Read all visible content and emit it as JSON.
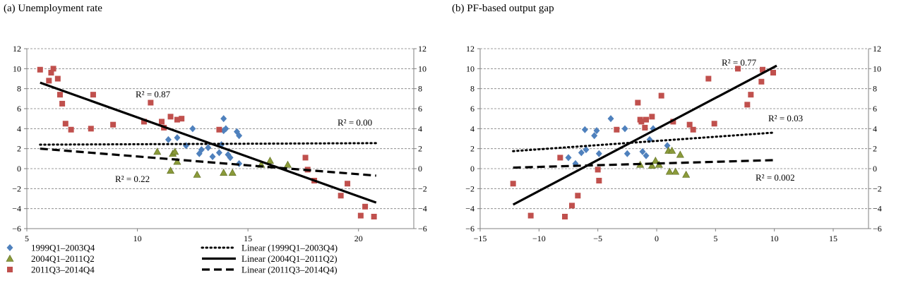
{
  "colors": {
    "series_1999": "#4f81bd",
    "series_2004": "#8a9a3a",
    "series_2011": "#c0504d",
    "grid": "#7f7f7f",
    "line": "#000000"
  },
  "legend": {
    "items": [
      {
        "label": "1999Q1–2003Q4",
        "marker": "diamond",
        "color": "#4f81bd"
      },
      {
        "label": "2004Q1–2011Q2",
        "marker": "triangle",
        "color": "#8a9a3a"
      },
      {
        "label": "2011Q3–2014Q4",
        "marker": "square",
        "color": "#c0504d"
      },
      {
        "label": "Linear (1999Q1–2003Q4)",
        "style": "dotted"
      },
      {
        "label": "Linear (2004Q1–2011Q2)",
        "style": "solid"
      },
      {
        "label": "Linear (2011Q3–2014Q4)",
        "style": "dashed"
      }
    ]
  },
  "chart_data": [
    {
      "type": "scatter",
      "title": "(a) Unemployment rate",
      "xlim": [
        5,
        22.5
      ],
      "ylim": [
        -6,
        12
      ],
      "xticks": [
        5,
        10,
        15,
        20
      ],
      "yticks": [
        -6,
        -4,
        -2,
        0,
        2,
        4,
        6,
        8,
        10,
        12
      ],
      "grid": "horizontal dashed",
      "series": [
        {
          "name": "1999Q1–2003Q4",
          "marker": "diamond",
          "points": [
            [
              11.4,
              2.9
            ],
            [
              11.8,
              3.1
            ],
            [
              12.2,
              2.3
            ],
            [
              12.5,
              4.0
            ],
            [
              12.8,
              1.5
            ],
            [
              12.9,
              1.9
            ],
            [
              13.2,
              2.1
            ],
            [
              13.4,
              1.2
            ],
            [
              13.7,
              1.6
            ],
            [
              13.8,
              2.4
            ],
            [
              13.9,
              5.0
            ],
            [
              13.9,
              3.8
            ],
            [
              14.0,
              4.0
            ],
            [
              14.1,
              1.4
            ],
            [
              14.2,
              1.1
            ],
            [
              14.5,
              3.7
            ],
            [
              14.6,
              3.3
            ],
            [
              14.6,
              0.5
            ]
          ]
        },
        {
          "name": "2004Q1–2011Q2",
          "marker": "triangle",
          "points": [
            [
              10.9,
              1.7
            ],
            [
              11.5,
              -0.2
            ],
            [
              11.6,
              1.5
            ],
            [
              11.7,
              1.7
            ],
            [
              11.8,
              0.7
            ],
            [
              12.7,
              -0.6
            ],
            [
              13.9,
              -0.4
            ],
            [
              14.3,
              -0.4
            ],
            [
              15.6,
              0.4
            ],
            [
              16.0,
              0.8
            ],
            [
              16.8,
              0.4
            ]
          ]
        },
        {
          "name": "2011Q3–2014Q4",
          "marker": "square",
          "points": [
            [
              5.6,
              9.9
            ],
            [
              6.0,
              8.8
            ],
            [
              6.1,
              9.6
            ],
            [
              6.2,
              10.0
            ],
            [
              6.4,
              9.0
            ],
            [
              6.5,
              7.4
            ],
            [
              6.6,
              6.5
            ],
            [
              6.75,
              4.5
            ],
            [
              7.0,
              3.9
            ],
            [
              7.9,
              4.0
            ],
            [
              8.0,
              7.4
            ],
            [
              8.9,
              4.4
            ],
            [
              10.3,
              4.7
            ],
            [
              10.6,
              6.6
            ],
            [
              11.1,
              4.7
            ],
            [
              11.2,
              4.1
            ],
            [
              11.5,
              5.2
            ],
            [
              11.8,
              4.9
            ],
            [
              12.0,
              5.0
            ],
            [
              13.7,
              3.9
            ],
            [
              17.6,
              1.1
            ],
            [
              17.7,
              -0.1
            ],
            [
              18.0,
              -1.2
            ],
            [
              19.2,
              -2.7
            ],
            [
              19.5,
              -1.5
            ],
            [
              20.1,
              -4.7
            ],
            [
              20.3,
              -3.8
            ],
            [
              20.7,
              -4.8
            ]
          ]
        }
      ],
      "trendlines": [
        {
          "name": "Linear (1999Q1–2003Q4)",
          "style": "dotted",
          "from": [
            5.6,
            2.4
          ],
          "to": [
            20.8,
            2.55
          ],
          "r2": "R² = 0.00"
        },
        {
          "name": "Linear (2004Q1–2011Q2)",
          "style": "solid",
          "from": [
            5.6,
            8.6
          ],
          "to": [
            20.8,
            -3.4
          ],
          "r2": "R² = 0.87"
        },
        {
          "name": "Linear (2011Q3–2014Q4)",
          "style": "dashed",
          "from": [
            5.6,
            2.0
          ],
          "to": [
            20.8,
            -0.7
          ],
          "r2": "R² = 0.22"
        }
      ]
    },
    {
      "type": "scatter",
      "title": "(b) PF-based output gap",
      "xlim": [
        -15,
        18
      ],
      "ylim": [
        -6,
        12
      ],
      "xticks": [
        -15,
        -10,
        -5,
        0,
        5,
        10,
        15
      ],
      "yticks": [
        -6,
        -4,
        -2,
        0,
        2,
        4,
        6,
        8,
        10,
        12
      ],
      "grid": "horizontal dashed",
      "series": [
        {
          "name": "1999Q1–2003Q4",
          "marker": "diamond",
          "points": [
            [
              -7.5,
              1.1
            ],
            [
              -6.9,
              0.5
            ],
            [
              -6.4,
              1.6
            ],
            [
              -6.1,
              3.9
            ],
            [
              -6.0,
              1.9
            ],
            [
              -5.3,
              3.3
            ],
            [
              -5.1,
              3.8
            ],
            [
              -4.9,
              1.5
            ],
            [
              -3.9,
              5.0
            ],
            [
              -2.7,
              4.0
            ],
            [
              -2.5,
              1.5
            ],
            [
              -1.2,
              1.7
            ],
            [
              -0.9,
              1.3
            ],
            [
              -0.6,
              2.9
            ],
            [
              -0.3,
              4.0
            ],
            [
              0.9,
              2.3
            ]
          ]
        },
        {
          "name": "2004Q1–2011Q2",
          "marker": "triangle",
          "points": [
            [
              -1.4,
              0.4
            ],
            [
              -0.4,
              0.3
            ],
            [
              -0.1,
              0.8
            ],
            [
              0.2,
              0.4
            ],
            [
              1.0,
              1.8
            ],
            [
              1.1,
              -0.3
            ],
            [
              1.3,
              1.8
            ],
            [
              1.6,
              -0.3
            ],
            [
              2.0,
              1.4
            ],
            [
              2.5,
              -0.6
            ]
          ]
        },
        {
          "name": "2011Q3–2014Q4",
          "marker": "square",
          "points": [
            [
              -12.2,
              -1.5
            ],
            [
              -10.7,
              -4.7
            ],
            [
              -8.2,
              1.1
            ],
            [
              -7.8,
              -4.8
            ],
            [
              -7.2,
              -3.7
            ],
            [
              -6.7,
              -2.7
            ],
            [
              -5.0,
              -0.1
            ],
            [
              -4.9,
              -1.2
            ],
            [
              -3.4,
              3.9
            ],
            [
              -1.6,
              6.6
            ],
            [
              -1.4,
              4.9
            ],
            [
              -1.3,
              4.7
            ],
            [
              -0.9,
              4.9
            ],
            [
              -1.0,
              4.1
            ],
            [
              -0.4,
              5.2
            ],
            [
              0.4,
              7.3
            ],
            [
              1.4,
              4.7
            ],
            [
              2.8,
              4.4
            ],
            [
              3.1,
              3.9
            ],
            [
              4.4,
              9.0
            ],
            [
              4.9,
              4.5
            ],
            [
              6.9,
              10.0
            ],
            [
              7.7,
              6.4
            ],
            [
              8.0,
              7.4
            ],
            [
              8.9,
              8.7
            ],
            [
              9.0,
              9.9
            ],
            [
              9.9,
              9.6
            ]
          ]
        }
      ],
      "trendlines": [
        {
          "name": "Linear (1999Q1–2003Q4)",
          "style": "dotted",
          "from": [
            -12.2,
            1.75
          ],
          "to": [
            9.9,
            3.6
          ],
          "r2": "R² = 0.03"
        },
        {
          "name": "Linear (2004Q1–2011Q2)",
          "style": "solid",
          "from": [
            -12.2,
            -3.6
          ],
          "to": [
            10.2,
            10.3
          ],
          "r2": "R² = 0.77"
        },
        {
          "name": "Linear (2011Q3–2014Q4)",
          "style": "dashed",
          "from": [
            -12.2,
            0.1
          ],
          "to": [
            9.9,
            0.85
          ],
          "r2": "R² = 0.002"
        }
      ]
    }
  ]
}
